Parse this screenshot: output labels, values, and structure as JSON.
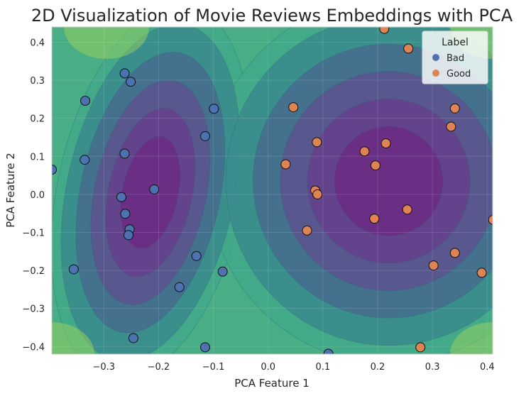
{
  "chart_data": {
    "type": "scatter",
    "title": "2D Visualization of Movie Reviews Embeddings with PCA",
    "xlabel": "PCA Feature 1",
    "ylabel": "PCA Feature 2",
    "xlim": [
      -0.395,
      0.41
    ],
    "ylim": [
      -0.42,
      0.44
    ],
    "xticks": [
      "−0.3",
      "−0.2",
      "−0.1",
      "0.0",
      "0.1",
      "0.2",
      "0.3",
      "0.4"
    ],
    "xtick_values": [
      -0.3,
      -0.2,
      -0.1,
      0.0,
      0.1,
      0.2,
      0.3,
      0.4
    ],
    "yticks": [
      "−0.4",
      "−0.3",
      "−0.2",
      "−0.1",
      "0.0",
      "0.1",
      "0.2",
      "0.3",
      "0.4"
    ],
    "ytick_values": [
      -0.4,
      -0.3,
      -0.2,
      -0.1,
      0.0,
      0.1,
      0.2,
      0.3,
      0.4
    ],
    "grid": true,
    "background": "density contour (viridis), lowest density near the centres of the two clusters",
    "legend": {
      "title": "Label",
      "position": "top-right",
      "entries": [
        {
          "label": "Bad",
          "color": "#4c72b0"
        },
        {
          "label": "Good",
          "color": "#dd8452"
        }
      ]
    },
    "series": [
      {
        "name": "Bad",
        "color": "#4c72b0",
        "points": [
          [
            -0.395,
            0.065
          ],
          [
            -0.262,
            0.318
          ],
          [
            -0.251,
            0.296
          ],
          [
            -0.334,
            0.246
          ],
          [
            -0.099,
            0.225
          ],
          [
            -0.115,
            0.153
          ],
          [
            -0.262,
            0.107
          ],
          [
            -0.335,
            0.091
          ],
          [
            -0.208,
            0.013
          ],
          [
            -0.268,
            -0.007
          ],
          [
            -0.261,
            -0.051
          ],
          [
            -0.253,
            -0.092
          ],
          [
            -0.255,
            -0.107
          ],
          [
            -0.131,
            -0.162
          ],
          [
            -0.355,
            -0.197
          ],
          [
            -0.083,
            -0.203
          ],
          [
            -0.162,
            -0.244
          ],
          [
            -0.246,
            -0.378
          ],
          [
            -0.115,
            -0.402
          ],
          [
            0.11,
            -0.419
          ]
        ]
      },
      {
        "name": "Good",
        "color": "#dd8452",
        "points": [
          [
            0.212,
            0.435
          ],
          [
            0.256,
            0.383
          ],
          [
            0.046,
            0.229
          ],
          [
            0.341,
            0.226
          ],
          [
            0.334,
            0.178
          ],
          [
            0.089,
            0.137
          ],
          [
            0.215,
            0.134
          ],
          [
            0.176,
            0.113
          ],
          [
            0.032,
            0.079
          ],
          [
            0.196,
            0.076
          ],
          [
            0.086,
            0.01
          ],
          [
            0.09,
            0.0
          ],
          [
            0.254,
            -0.04
          ],
          [
            0.411,
            -0.067
          ],
          [
            0.194,
            -0.064
          ],
          [
            0.071,
            -0.095
          ],
          [
            0.341,
            -0.154
          ],
          [
            0.302,
            -0.187
          ],
          [
            0.39,
            -0.206
          ],
          [
            0.278,
            -0.402
          ]
        ]
      }
    ]
  }
}
